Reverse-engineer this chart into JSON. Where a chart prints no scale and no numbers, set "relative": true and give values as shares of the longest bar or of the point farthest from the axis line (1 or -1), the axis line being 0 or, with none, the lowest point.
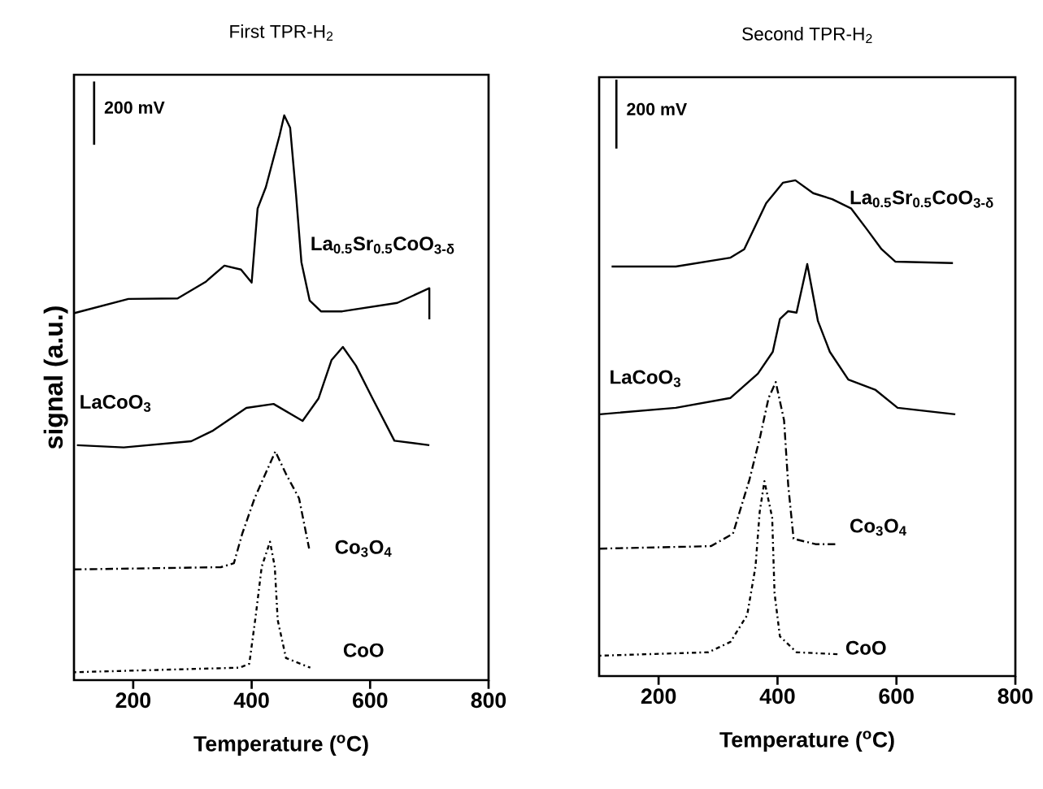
{
  "chart_data": [
    {
      "type": "line",
      "title": "First TPR-H$_{2}$",
      "xlabel": "Temperature ($^{o}$C)",
      "ylabel": "signal (a.u.)",
      "relative": true,
      "xlim": [
        100,
        800
      ],
      "xticks": [
        200,
        400,
        600,
        800
      ],
      "tick_labels": "x",
      "annotations": [
        "200 mV"
      ],
      "series": [
        {
          "name": "La$_{0.5}$Sr$_{0.5}$CoO$_{3-δ}$",
          "color": "#000000",
          "line_style": "solid",
          "x": [
            101,
            192,
            275,
            322,
            354,
            382,
            400,
            410,
            424,
            447,
            455,
            465,
            475,
            484,
            498,
            517,
            553,
            646,
            700,
            700
          ],
          "values": [
            0.65,
            0.675,
            0.676,
            0.705,
            0.734,
            0.727,
            0.704,
            0.835,
            0.873,
            0.964,
            1.0,
            0.978,
            0.859,
            0.74,
            0.672,
            0.653,
            0.653,
            0.668,
            0.694,
            0.639
          ]
        },
        {
          "name": "LaCoO$_{3}$",
          "color": "#000000",
          "line_style": "solid",
          "x": [
            105,
            184,
            298,
            335,
            391,
            437,
            486,
            513,
            535,
            554,
            576,
            604,
            641,
            700
          ],
          "values": [
            0.416,
            0.412,
            0.423,
            0.442,
            0.482,
            0.489,
            0.459,
            0.499,
            0.567,
            0.59,
            0.557,
            0.499,
            0.424,
            0.416
          ]
        },
        {
          "name": "Co$_{3}$O$_{4}$",
          "color": "#000000",
          "line_style": "dashed",
          "x": [
            100,
            348,
            370,
            384,
            405,
            421,
            440,
            458,
            480,
            497
          ],
          "values": [
            0.196,
            0.2,
            0.207,
            0.259,
            0.322,
            0.36,
            0.405,
            0.365,
            0.322,
            0.233
          ]
        },
        {
          "name": "CoO",
          "color": "#000000",
          "line_style": "dotted",
          "x": [
            101,
            380,
            396,
            407,
            417,
            431,
            439,
            444,
            458,
            499
          ],
          "values": [
            0.014,
            0.022,
            0.029,
            0.115,
            0.201,
            0.245,
            0.201,
            0.106,
            0.039,
            0.022
          ]
        }
      ]
    },
    {
      "type": "line",
      "title": "Second TPR-H$_{2}$",
      "xlabel": "Temperature ($^{o}$C)",
      "relative": true,
      "xlim": [
        100,
        800
      ],
      "xticks": [
        200,
        400,
        600,
        800
      ],
      "tick_labels": "x",
      "annotations": [
        "200 mV"
      ],
      "series": [
        {
          "name": "La$_{0.5}$Sr$_{0.5}$CoO$_{3-δ}$",
          "color": "#000000",
          "line_style": "solid",
          "x": [
            121,
            229,
            321,
            344,
            381,
            409,
            430,
            460,
            492,
            524,
            551,
            575,
            598,
            695
          ],
          "values": [
            0.826,
            0.826,
            0.844,
            0.861,
            0.954,
            0.995,
            1.0,
            0.974,
            0.962,
            0.943,
            0.9,
            0.861,
            0.836,
            0.833
          ]
        },
        {
          "name": "LaCoO$_{3}$",
          "color": "#000000",
          "line_style": "solid",
          "x": [
            101,
            229,
            321,
            367,
            392,
            404,
            418,
            432,
            450,
            468,
            488,
            519,
            565,
            602,
            699
          ],
          "values": [
            0.528,
            0.541,
            0.561,
            0.61,
            0.654,
            0.72,
            0.736,
            0.733,
            0.831,
            0.716,
            0.654,
            0.598,
            0.577,
            0.541,
            0.528
          ]
        },
        {
          "name": "Co$_{3}$O$_{4}$",
          "color": "#000000",
          "line_style": "dashed",
          "x": [
            101,
            288,
            325,
            353,
            371,
            385,
            397,
            411,
            418,
            427,
            464,
            499
          ],
          "values": [
            0.257,
            0.262,
            0.287,
            0.397,
            0.484,
            0.561,
            0.593,
            0.516,
            0.385,
            0.277,
            0.266,
            0.266
          ]
        },
        {
          "name": "CoO",
          "color": "#000000",
          "line_style": "dotted",
          "x": [
            101,
            284,
            321,
            349,
            363,
            370,
            378,
            391,
            395,
            404,
            432,
            501
          ],
          "values": [
            0.041,
            0.048,
            0.069,
            0.123,
            0.221,
            0.331,
            0.393,
            0.32,
            0.167,
            0.08,
            0.048,
            0.044
          ]
        }
      ]
    }
  ]
}
